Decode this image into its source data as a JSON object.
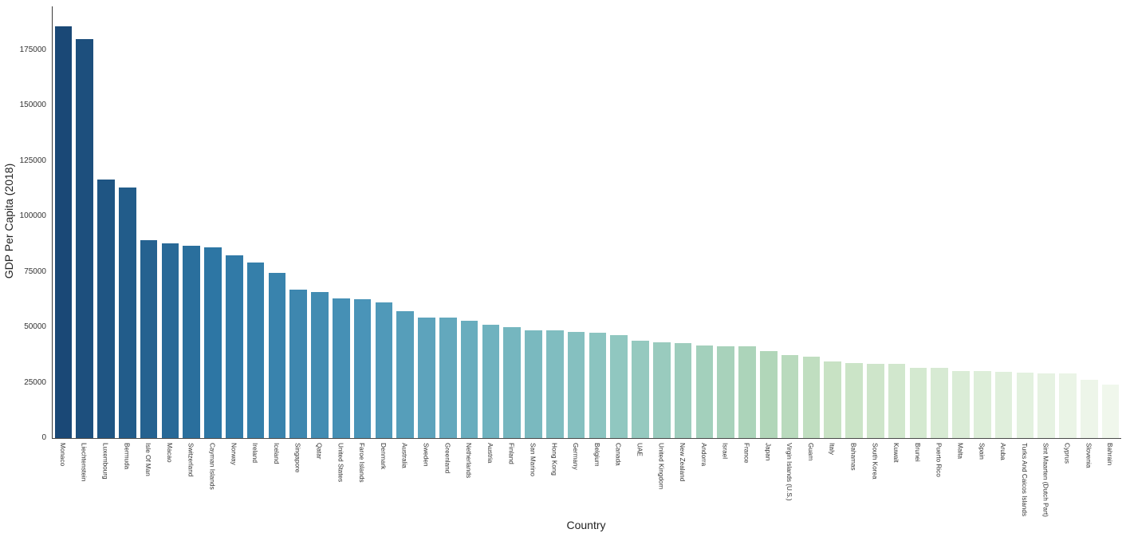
{
  "chart_data": {
    "type": "bar",
    "title": "",
    "xlabel": "Country",
    "ylabel": "GDP Per Capita (2018)",
    "grid": false,
    "legend": "none",
    "background": "#ffffff",
    "axis_color": "#3a3a3a",
    "tick_label_color": "#333333",
    "ylim": [
      0,
      195000
    ],
    "yticks": [
      0,
      25000,
      50000,
      75000,
      100000,
      125000,
      150000,
      175000
    ],
    "categories": [
      "Monaco",
      "Liechtenstein",
      "Luxembourg",
      "Bermuda",
      "Isle Of Man",
      "Macao",
      "Switzerland",
      "Cayman Islands",
      "Norway",
      "Ireland",
      "Iceland",
      "Singapore",
      "Qatar",
      "United States",
      "Faroe Islands",
      "Denmark",
      "Australia",
      "Sweden",
      "Greenland",
      "Netherlands",
      "Austria",
      "Finland",
      "San Marino",
      "Hong Kong",
      "Germany",
      "Belgium",
      "Canada",
      "UAE",
      "United Kingdom",
      "New Zealand",
      "Andorra",
      "Israel",
      "France",
      "Japan",
      "Virgin Islands (U.S.)",
      "Guam",
      "Italy",
      "Bahamas",
      "South Korea",
      "Kuwait",
      "Brunei",
      "Puerto Rico",
      "Malta",
      "Spain",
      "Aruba",
      "Turks And Caicos Islands",
      "Sint Maarten (Dutch Part)",
      "Cyprus",
      "Slovenia",
      "Bahrain"
    ],
    "values": [
      185700,
      180000,
      116700,
      113200,
      89400,
      87800,
      86600,
      86200,
      82500,
      79300,
      74400,
      66800,
      65700,
      62900,
      62600,
      61200,
      57400,
      54500,
      54400,
      53000,
      51200,
      49900,
      48700,
      48500,
      47800,
      47400,
      46400,
      43800,
      43200,
      42700,
      41600,
      41550,
      41500,
      39400,
      37400,
      36700,
      34400,
      33800,
      33400,
      33300,
      31600,
      31500,
      30400,
      30350,
      30000,
      29500,
      29200,
      29100,
      26400,
      24200
    ],
    "bar_colors": [
      "#1a4876",
      "#1d4f7d",
      "#1f5583",
      "#225c8a",
      "#256290",
      "#286997",
      "#2a6f9d",
      "#2d76a4",
      "#317aa7",
      "#357faa",
      "#3983ad",
      "#3e87af",
      "#428cb2",
      "#4690b5",
      "#4a94b8",
      "#5099b9",
      "#569eba",
      "#5da3bc",
      "#63a8bd",
      "#69adbe",
      "#6fb2bf",
      "#75b6bf",
      "#7ab9bf",
      "#80bdc0",
      "#85c0c0",
      "#8bc4c0",
      "#90c7c0",
      "#95c9bf",
      "#99cbbe",
      "#9ecdbd",
      "#a3d0bc",
      "#a8d2bb",
      "#acd4ba",
      "#b1d6b9",
      "#b9dabd",
      "#c0dec0",
      "#c8e2c4",
      "#cbe4c7",
      "#cee5ca",
      "#d1e7cd",
      "#d4e9d0",
      "#d7ead3",
      "#daecd6",
      "#ddeed9",
      "#e0efdc",
      "#e3f1df",
      "#e6f2e2",
      "#eaf4e6",
      "#edf5e9",
      "#f0f7ec"
    ]
  }
}
